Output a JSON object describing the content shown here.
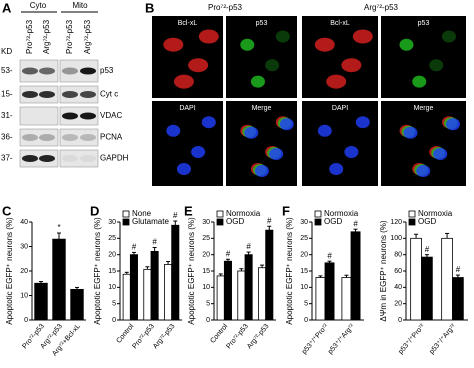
{
  "panel_a": {
    "label": "A",
    "groups": [
      "Cyto",
      "Mito"
    ],
    "lanes": [
      "Pro⁷²-p53",
      "Arg⁷²-p53",
      "Pro⁷²-p53",
      "Arg⁷²-p53"
    ],
    "kd": "KD",
    "markers": [
      "53-",
      "15-",
      "31-",
      "36-",
      "37-"
    ],
    "proteins": [
      "p53",
      "Cyt c",
      "VDAC",
      "PCNA",
      "GAPDH"
    ]
  },
  "panel_b": {
    "label": "B",
    "groups": [
      "Pro⁷²-p53",
      "Arg⁷²-p53"
    ],
    "channels": [
      "Bcl-xL",
      "p53",
      "DAPI",
      "Merge"
    ]
  },
  "chart_data": [
    {
      "type": "bar",
      "panel": "C",
      "ylabel": "Apoptotic EGFP⁺ neurons (%)",
      "categories": [
        "Pro⁷²-p53",
        "Arg⁷²-p53",
        "Arg⁷²+Bcl-xL"
      ],
      "series": [
        {
          "color": "#000000",
          "values": [
            15,
            33,
            12.5
          ],
          "errors": [
            0.7,
            2.5,
            0.8
          ],
          "significance": [
            null,
            "*",
            null
          ]
        }
      ],
      "ylim": [
        0,
        40
      ],
      "yticks": [
        0,
        10,
        20,
        30,
        40
      ]
    },
    {
      "type": "bar",
      "panel": "D",
      "ylabel": "Apoptotic EGFP⁺ neurons (%)",
      "categories": [
        "Control",
        "Pro⁷²-p53",
        "Arg⁷²-p53"
      ],
      "series": [
        {
          "name": "None",
          "color": "#ffffff",
          "values": [
            14,
            15.5,
            17
          ],
          "errors": [
            0.6,
            0.8,
            0.9
          ]
        },
        {
          "name": "Glutamate",
          "color": "#000000",
          "values": [
            20,
            21,
            29
          ],
          "errors": [
            0.7,
            1.2,
            1.3
          ],
          "significance": [
            "#",
            "#",
            "#"
          ]
        }
      ],
      "ylim": [
        0,
        30
      ],
      "yticks": [
        0,
        5,
        10,
        15,
        20,
        25,
        30
      ],
      "legend": "upper left"
    },
    {
      "type": "bar",
      "panel": "E",
      "ylabel": "Apoptotic EGFP⁺ neurons (%)",
      "categories": [
        "Control",
        "Pro⁷²-p53",
        "Arg⁷²-p53"
      ],
      "series": [
        {
          "name": "Normoxia",
          "color": "#ffffff",
          "values": [
            13.5,
            15,
            16
          ],
          "errors": [
            0.6,
            0.7,
            0.8
          ]
        },
        {
          "name": "OGD",
          "color": "#000000",
          "values": [
            18,
            20,
            27.5
          ],
          "errors": [
            0.6,
            0.8,
            1.2
          ],
          "significance": [
            "#",
            "#",
            "#"
          ]
        }
      ],
      "ylim": [
        0,
        30
      ],
      "yticks": [
        0,
        5,
        10,
        15,
        20,
        25,
        30
      ],
      "legend": "upper left"
    },
    {
      "type": "bar",
      "panel": "F",
      "ylabel": "Apoptotic EGFP⁺ neurons (%)",
      "categories": [
        "p53⁺/⁺Pro⁷²",
        "p53⁺/⁺Arg⁷²"
      ],
      "series": [
        {
          "name": "Normoxia",
          "color": "#ffffff",
          "values": [
            13,
            13
          ],
          "errors": [
            0.5,
            0.7
          ]
        },
        {
          "name": "OGD",
          "color": "#000000",
          "values": [
            17.5,
            27
          ],
          "errors": [
            0.5,
            0.8
          ],
          "significance": [
            "#",
            "#"
          ]
        }
      ],
      "ylim": [
        0,
        30
      ],
      "yticks": [
        0,
        5,
        10,
        15,
        20,
        25,
        30
      ],
      "legend": "upper left"
    },
    {
      "type": "bar",
      "ylabel": "ΔΨm in EGFP⁺ neurons (%)",
      "categories": [
        "p53⁺/⁺Pro⁷²",
        "p53⁺/⁺Arg⁷²"
      ],
      "series": [
        {
          "name": "Normoxia",
          "color": "#ffffff",
          "values": [
            100,
            100
          ],
          "errors": [
            5,
            6
          ]
        },
        {
          "name": "OGD",
          "color": "#000000",
          "values": [
            77,
            52
          ],
          "errors": [
            3,
            3
          ],
          "significance": [
            "#",
            "#"
          ]
        }
      ],
      "ylim": [
        0,
        120
      ],
      "yticks": [
        0,
        20,
        40,
        60,
        80,
        100,
        120
      ],
      "legend": "upper left"
    }
  ]
}
